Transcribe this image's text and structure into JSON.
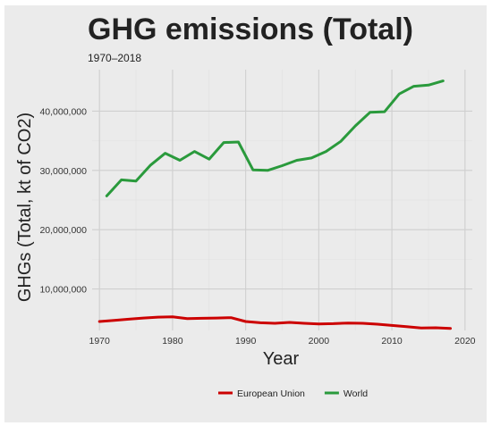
{
  "chart_data": {
    "type": "line",
    "title": "GHG emissions (Total)",
    "subtitle": "1970–2018",
    "xlabel": "Year",
    "ylabel": "GHGs (Total, kt of CO2)",
    "xlim": [
      1969,
      2021
    ],
    "ylim": [
      3000000,
      47000000
    ],
    "x_ticks": [
      1970,
      1980,
      1990,
      2000,
      2010,
      2020
    ],
    "y_ticks": [
      10000000,
      20000000,
      30000000,
      40000000
    ],
    "y_tick_labels": [
      "10,000,000",
      "20,000,000",
      "30,000,000",
      "40,000,000"
    ],
    "grid": true,
    "legend_position": "bottom",
    "series": [
      {
        "name": "European Union",
        "color": "#cc0000",
        "x": [
          1970,
          1972,
          1974,
          1976,
          1978,
          1980,
          1982,
          1984,
          1986,
          1988,
          1990,
          1992,
          1994,
          1996,
          1998,
          2000,
          2002,
          2004,
          2006,
          2008,
          2010,
          2012,
          2014,
          2016,
          2018
        ],
        "y": [
          4500000,
          4700000,
          4900000,
          5100000,
          5250000,
          5300000,
          5000000,
          5050000,
          5100000,
          5150000,
          4500000,
          4300000,
          4200000,
          4350000,
          4200000,
          4100000,
          4150000,
          4250000,
          4200000,
          4050000,
          3850000,
          3650000,
          3400000,
          3450000,
          3350000
        ]
      },
      {
        "name": "World",
        "color": "#2a9a3c",
        "x": [
          1971,
          1973,
          1975,
          1977,
          1979,
          1981,
          1983,
          1985,
          1987,
          1989,
          1991,
          1993,
          1995,
          1997,
          1999,
          2001,
          2003,
          2005,
          2007,
          2009,
          2011,
          2013,
          2015,
          2017
        ],
        "y": [
          25700000,
          28400000,
          28200000,
          30900000,
          32900000,
          31700000,
          33200000,
          31900000,
          34700000,
          34800000,
          30100000,
          30000000,
          30800000,
          31700000,
          32100000,
          33200000,
          34900000,
          37500000,
          39800000,
          39900000,
          42900000,
          44200000,
          44400000,
          45100000
        ]
      }
    ]
  }
}
